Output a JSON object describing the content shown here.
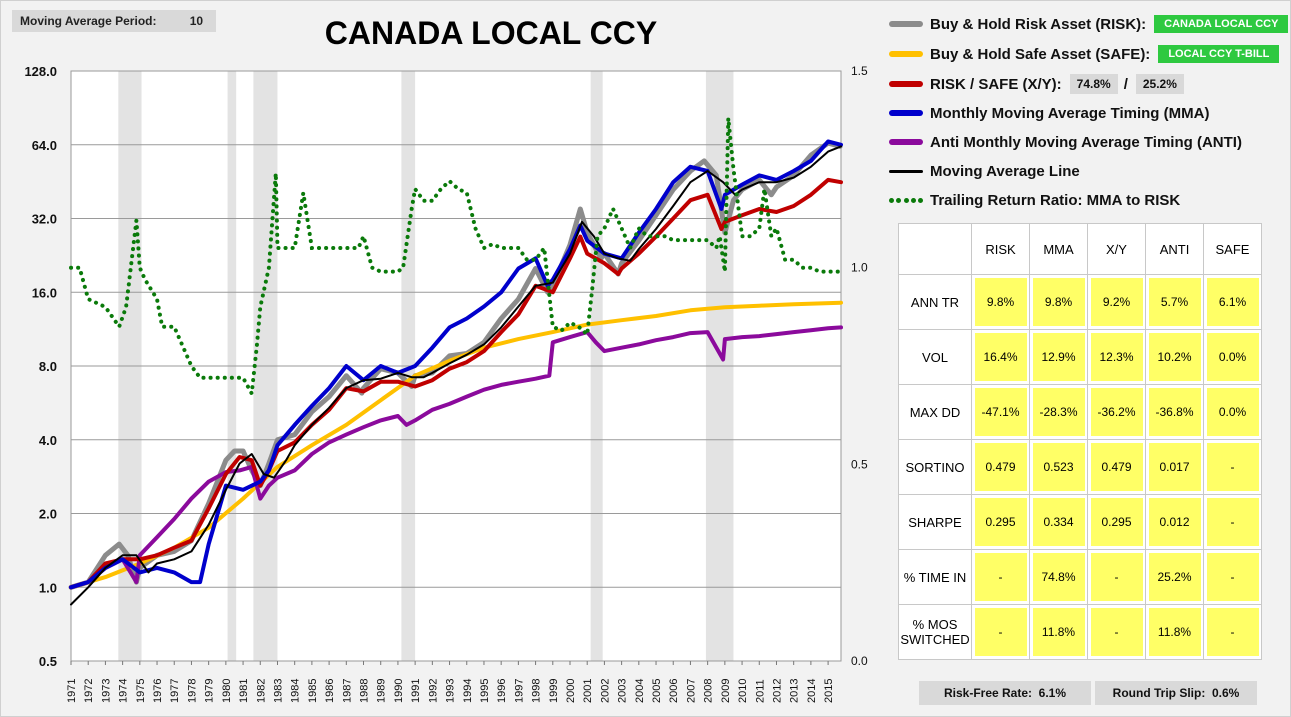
{
  "header": {
    "ma_label": "Moving Average Period:",
    "ma_value": "10",
    "title": "CANADA LOCAL CCY"
  },
  "legend": {
    "risk_label": "Buy & Hold Risk Asset (RISK):",
    "risk_tag": "CANADA LOCAL CCY",
    "safe_label": "Buy & Hold Safe Asset (SAFE):",
    "safe_tag": "LOCAL CCY T-BILL",
    "xy_label": "RISK / SAFE (X/Y):",
    "xy_risk": "74.8%",
    "xy_slash": "/",
    "xy_safe": "25.2%",
    "mma_label": "Monthly Moving Average Timing (MMA)",
    "anti_label": "Anti Monthly Moving Average Timing (ANTI)",
    "ma_line_label": "Moving Average Line",
    "ratio_label": "Trailing Return Ratio: MMA to RISK"
  },
  "colors": {
    "risk": "#8c8c8c",
    "safe": "#ffc000",
    "xy": "#c00000",
    "mma": "#0000cc",
    "anti": "#8b0a9c",
    "ma": "#000000",
    "ratio": "#0a7a0a",
    "tag": "#2ec940",
    "stat_fill": "#ffff66"
  },
  "stats": {
    "columns": [
      "RISK",
      "MMA",
      "X/Y",
      "ANTI",
      "SAFE"
    ],
    "rows": [
      {
        "label": "ANN TR",
        "values": [
          "9.8%",
          "9.8%",
          "9.2%",
          "5.7%",
          "6.1%"
        ]
      },
      {
        "label": "VOL",
        "values": [
          "16.4%",
          "12.9%",
          "12.3%",
          "10.2%",
          "0.0%"
        ]
      },
      {
        "label": "MAX DD",
        "values": [
          "-47.1%",
          "-28.3%",
          "-36.2%",
          "-36.8%",
          "0.0%"
        ]
      },
      {
        "label": "SORTINO",
        "values": [
          "0.479",
          "0.523",
          "0.479",
          "0.017",
          "-"
        ]
      },
      {
        "label": "SHARPE",
        "values": [
          "0.295",
          "0.334",
          "0.295",
          "0.012",
          "-"
        ]
      },
      {
        "label": "% TIME IN",
        "values": [
          "-",
          "74.8%",
          "-",
          "25.2%",
          "-"
        ]
      },
      {
        "label": "% MOS SWITCHED",
        "values": [
          "-",
          "11.8%",
          "-",
          "11.8%",
          "-"
        ]
      }
    ]
  },
  "footer": {
    "rf_label": "Risk-Free Rate:",
    "rf_value": "6.1%",
    "slip_label": "Round Trip Slip:",
    "slip_value": "0.6%"
  },
  "chart_data": {
    "type": "line",
    "y_scale": "log2",
    "ylim": [
      0.5,
      128
    ],
    "y_ticks": [
      "128.0",
      "64.0",
      "32.0",
      "16.0",
      "8.0",
      "4.0",
      "2.0",
      "1.0",
      "0.5"
    ],
    "y2lim": [
      0.0,
      1.5
    ],
    "y2_ticks": [
      "1.5",
      "1.0",
      "0.5",
      "0.0"
    ],
    "x_range": [
      1971,
      2015.75
    ],
    "x_ticks": [
      "1971",
      "1972",
      "1973",
      "1974",
      "1975",
      "1976",
      "1977",
      "1978",
      "1979",
      "1980",
      "1981",
      "1982",
      "1983",
      "1984",
      "1985",
      "1986",
      "1987",
      "1988",
      "1989",
      "1990",
      "1991",
      "1992",
      "1993",
      "1994",
      "1995",
      "1996",
      "1997",
      "1998",
      "1999",
      "2000",
      "2001",
      "2002",
      "2003",
      "2004",
      "2005",
      "2006",
      "2007",
      "2008",
      "2009",
      "2010",
      "2011",
      "2012",
      "2013",
      "2014",
      "2015"
    ],
    "recessions": [
      [
        1973.75,
        1975.1
      ],
      [
        1980.1,
        1980.6
      ],
      [
        1981.6,
        1983.0
      ],
      [
        1990.2,
        1991.0
      ],
      [
        2001.2,
        2001.9
      ],
      [
        2007.9,
        2009.5
      ]
    ],
    "series": [
      {
        "name": "Buy & Hold Risk Asset (RISK)",
        "axis": "left",
        "x": [
          1971,
          1972,
          1973,
          1973.8,
          1974.3,
          1974.8,
          1975,
          1976,
          1977,
          1978,
          1979,
          1980,
          1980.5,
          1981,
          1981.5,
          1982,
          1982.5,
          1983,
          1984,
          1985,
          1986,
          1987,
          1987.9,
          1988,
          1989,
          1990,
          1990.8,
          1991,
          1992,
          1993,
          1994,
          1995,
          1996,
          1997,
          1998,
          1998.7,
          1999,
          2000,
          2000.6,
          2001,
          2001.8,
          2002,
          2002.8,
          2003,
          2004,
          2005,
          2006,
          2007,
          2007.8,
          2008.5,
          2009,
          2009.5,
          2010,
          2011,
          2011.7,
          2012,
          2013,
          2014,
          2015,
          2015.7
        ],
        "y": [
          1.0,
          1.05,
          1.35,
          1.5,
          1.35,
          1.05,
          1.2,
          1.35,
          1.4,
          1.55,
          2.2,
          3.3,
          3.6,
          3.6,
          3.0,
          2.6,
          3.2,
          4.0,
          4.2,
          5.2,
          6.0,
          7.3,
          6.2,
          6.5,
          7.8,
          7.5,
          6.6,
          7.3,
          7.5,
          8.8,
          9.0,
          10.0,
          12.5,
          15.0,
          20.0,
          16.0,
          17.0,
          25.0,
          35.0,
          28.0,
          22.0,
          23.0,
          19.0,
          21.0,
          26.0,
          33.0,
          42.0,
          50.0,
          55.0,
          48.0,
          28.0,
          38.0,
          42.0,
          46.0,
          40.0,
          43.0,
          48.0,
          58.0,
          65.0,
          63.0
        ]
      },
      {
        "name": "Buy & Hold Safe Asset (SAFE)",
        "axis": "left",
        "x": [
          1971,
          1973,
          1975,
          1977,
          1979,
          1981,
          1983,
          1985,
          1987,
          1989,
          1991,
          1993,
          1995,
          1997,
          1999,
          2001,
          2003,
          2005,
          2007,
          2009,
          2011,
          2013,
          2015.75
        ],
        "y": [
          1.0,
          1.1,
          1.25,
          1.45,
          1.75,
          2.3,
          3.1,
          3.8,
          4.6,
          5.8,
          7.3,
          8.4,
          9.5,
          10.3,
          11.0,
          11.8,
          12.3,
          12.8,
          13.5,
          13.9,
          14.1,
          14.3,
          14.5
        ]
      },
      {
        "name": "RISK / SAFE (X/Y)",
        "axis": "left",
        "x": [
          1971,
          1972,
          1973,
          1974,
          1975,
          1976,
          1977,
          1978,
          1979,
          1980,
          1980.8,
          1981.5,
          1982,
          1982.5,
          1983,
          1984,
          1985,
          1986,
          1987,
          1988,
          1989,
          1990,
          1991,
          1992,
          1993,
          1994,
          1995,
          1996,
          1997,
          1998,
          1999,
          2000,
          2000.6,
          2001,
          2002,
          2002.8,
          2003,
          2004,
          2005,
          2006,
          2007,
          2008,
          2008.8,
          2009,
          2010,
          2011,
          2012,
          2013,
          2014,
          2015,
          2015.75
        ],
        "y": [
          1.0,
          1.05,
          1.25,
          1.3,
          1.3,
          1.35,
          1.45,
          1.55,
          2.1,
          2.9,
          3.4,
          3.3,
          2.6,
          3.0,
          3.6,
          3.9,
          4.6,
          5.3,
          6.5,
          6.3,
          6.9,
          6.9,
          6.6,
          7.0,
          7.8,
          8.3,
          9.2,
          11.0,
          13.0,
          17.0,
          16.0,
          22.0,
          27.0,
          23.0,
          21.0,
          19.0,
          20.0,
          23.0,
          27.0,
          32.0,
          38.0,
          40.0,
          29.0,
          31.0,
          33.0,
          35.0,
          34.0,
          36.0,
          40.0,
          46.0,
          45.0
        ]
      },
      {
        "name": "Monthly Moving Average Timing (MMA)",
        "axis": "left",
        "x": [
          1971,
          1972,
          1973,
          1974,
          1975,
          1976,
          1977,
          1978,
          1978.5,
          1979,
          1980,
          1981,
          1982,
          1982.5,
          1983,
          1984,
          1985,
          1986,
          1987,
          1988,
          1989,
          1990,
          1991,
          1992,
          1993,
          1994,
          1995,
          1996,
          1997,
          1998,
          1998.7,
          1999,
          2000,
          2000.6,
          2001,
          2002,
          2003,
          2004,
          2005,
          2006,
          2007,
          2008,
          2008.8,
          2009,
          2010,
          2011,
          2012,
          2013,
          2014,
          2015,
          2015.75
        ],
        "y": [
          1.0,
          1.05,
          1.2,
          1.3,
          1.15,
          1.2,
          1.15,
          1.05,
          1.05,
          1.5,
          2.6,
          2.5,
          2.7,
          3.0,
          3.8,
          4.6,
          5.5,
          6.5,
          8.0,
          7.0,
          8.0,
          7.5,
          8.0,
          9.5,
          11.5,
          12.5,
          14.0,
          16.0,
          20.0,
          22.0,
          17.0,
          18.0,
          24.0,
          30.0,
          26.0,
          23.0,
          22.0,
          28.0,
          35.0,
          45.0,
          52.0,
          50.0,
          35.0,
          40.0,
          44.0,
          48.0,
          46.0,
          50.0,
          55.0,
          66.0,
          64.0
        ]
      },
      {
        "name": "Anti Monthly Moving Average Timing (ANTI)",
        "axis": "left",
        "x": [
          1971,
          1972,
          1973,
          1974,
          1974.8,
          1975,
          1976,
          1977,
          1978,
          1979,
          1980,
          1980.8,
          1981.5,
          1982,
          1982.5,
          1983,
          1984,
          1985,
          1986,
          1987,
          1988,
          1989,
          1990,
          1990.5,
          1991,
          1992,
          1993,
          1994,
          1995,
          1996,
          1997,
          1998,
          1998.8,
          1999,
          2000,
          2001,
          2001.5,
          2002,
          2003,
          2004,
          2005,
          2006,
          2007,
          2008,
          2008.9,
          2009,
          2010,
          2011,
          2012,
          2013,
          2014,
          2015,
          2015.75
        ],
        "y": [
          1.0,
          1.05,
          1.2,
          1.3,
          1.05,
          1.35,
          1.6,
          1.9,
          2.3,
          2.7,
          2.95,
          3.0,
          3.1,
          2.3,
          2.6,
          2.8,
          3.0,
          3.5,
          3.9,
          4.2,
          4.5,
          4.8,
          5.0,
          4.6,
          4.8,
          5.3,
          5.6,
          6.0,
          6.4,
          6.7,
          6.9,
          7.1,
          7.3,
          10.0,
          10.5,
          11.0,
          10.0,
          9.2,
          9.5,
          9.8,
          10.2,
          10.5,
          10.9,
          11.0,
          8.5,
          10.3,
          10.5,
          10.6,
          10.8,
          11.0,
          11.2,
          11.4,
          11.5
        ]
      },
      {
        "name": "Moving Average Line",
        "axis": "left",
        "x": [
          1971,
          1972,
          1973,
          1974,
          1974.8,
          1975.5,
          1976,
          1977,
          1978,
          1979,
          1980,
          1980.8,
          1981.5,
          1982.2,
          1982.8,
          1983.5,
          1984,
          1985,
          1986,
          1987,
          1988,
          1989,
          1990,
          1990.8,
          1991.5,
          1992,
          1993,
          1994,
          1995,
          1996,
          1997,
          1998,
          1999,
          2000,
          2000.7,
          2001.4,
          2002,
          2002.8,
          2003.5,
          2004,
          2005,
          2006,
          2007,
          2008,
          2008.9,
          2009.6,
          2010,
          2011,
          2012,
          2013,
          2014,
          2015,
          2015.75
        ],
        "y": [
          0.85,
          1.0,
          1.2,
          1.35,
          1.35,
          1.15,
          1.25,
          1.3,
          1.4,
          1.8,
          2.5,
          3.2,
          3.5,
          2.9,
          2.8,
          3.3,
          3.8,
          4.6,
          5.4,
          6.5,
          7.0,
          7.1,
          7.5,
          7.2,
          7.2,
          7.5,
          8.2,
          8.9,
          9.8,
          11.5,
          14.0,
          17.0,
          17.5,
          23.0,
          31.0,
          27.0,
          23.0,
          22.0,
          21.5,
          24.0,
          29.0,
          36.0,
          45.0,
          50.0,
          45.0,
          40.0,
          42.0,
          45.0,
          45.0,
          47.0,
          52.0,
          60.0,
          63.0
        ]
      },
      {
        "name": "Trailing Return Ratio: MMA to RISK",
        "axis": "right",
        "dotted": true,
        "x": [
          1971,
          1971.5,
          1972,
          1973,
          1973.8,
          1974.2,
          1974.8,
          1975,
          1975.3,
          1976,
          1976.3,
          1977,
          1977.5,
          1978,
          1978.5,
          1979,
          1980,
          1980.5,
          1981,
          1981.5,
          1981.8,
          1982,
          1982.5,
          1982.9,
          1983,
          1983.5,
          1984,
          1984.5,
          1985,
          1985.5,
          1986,
          1986.5,
          1987,
          1987.7,
          1988,
          1988.5,
          1989,
          1989.5,
          1990,
          1990.3,
          1990.8,
          1991,
          1991.5,
          1992,
          1992.5,
          1993,
          1993.5,
          1994,
          1994.5,
          1995,
          1995.5,
          1996,
          1996.5,
          1997,
          1997.5,
          1998,
          1998.5,
          1999,
          1999.5,
          2000,
          2000.5,
          2001,
          2001.3,
          2001.6,
          2002,
          2002.5,
          2003,
          2003.5,
          2004,
          2004.5,
          2005,
          2005.5,
          2006,
          2006.5,
          2007,
          2007.5,
          2008,
          2008.5,
          2008.7,
          2009,
          2009.2,
          2009.5,
          2010,
          2010.5,
          2011,
          2011.3,
          2011.7,
          2012,
          2012.5,
          2013,
          2013.5,
          2014,
          2014.5,
          2015,
          2015.75
        ],
        "y": [
          1.0,
          1.0,
          0.92,
          0.9,
          0.85,
          0.9,
          1.12,
          1.0,
          0.97,
          0.92,
          0.85,
          0.85,
          0.8,
          0.75,
          0.72,
          0.72,
          0.72,
          0.72,
          0.72,
          0.68,
          0.8,
          0.9,
          1.0,
          1.24,
          1.05,
          1.05,
          1.05,
          1.19,
          1.05,
          1.05,
          1.05,
          1.05,
          1.05,
          1.05,
          1.08,
          1.0,
          0.99,
          0.99,
          0.99,
          1.0,
          1.15,
          1.2,
          1.17,
          1.17,
          1.2,
          1.22,
          1.2,
          1.19,
          1.1,
          1.05,
          1.06,
          1.05,
          1.05,
          1.05,
          1.02,
          1.02,
          1.05,
          0.85,
          0.84,
          0.86,
          0.85,
          0.83,
          0.95,
          1.08,
          1.1,
          1.15,
          1.1,
          1.05,
          1.1,
          1.08,
          1.08,
          1.08,
          1.07,
          1.07,
          1.07,
          1.07,
          1.07,
          1.05,
          1.08,
          0.99,
          1.38,
          1.25,
          1.08,
          1.08,
          1.1,
          1.2,
          1.08,
          1.1,
          1.02,
          1.02,
          1.0,
          1.0,
          0.99,
          0.99,
          0.99
        ]
      }
    ]
  }
}
